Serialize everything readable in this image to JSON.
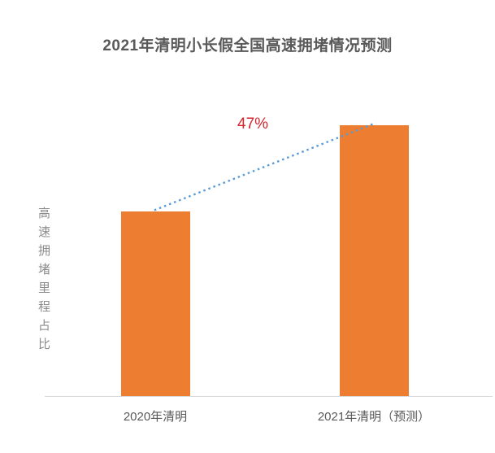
{
  "chart_data": {
    "type": "bar",
    "title": "2021年清明小长假全国高速拥堵情况预测",
    "ylabel": "高速拥堵里程占比",
    "xlabel": "",
    "categories": [
      "2020年清明",
      "2021年清明（预测）"
    ],
    "values": [
      100,
      147
    ],
    "values_are_relative": true,
    "annotation": "47%",
    "grid": false,
    "y_axis_ticks_visible": false,
    "legend_position": "none",
    "colors": {
      "bar": "#ED7D31",
      "trend_line": "#5B9BD5",
      "annotation": "#D0262C",
      "title_text": "#595959",
      "axis_label_text": "#595959",
      "ylabel_text": "#8C8C8C",
      "axis_line": "#D9D9D9",
      "background": "#FFFFFF"
    }
  }
}
